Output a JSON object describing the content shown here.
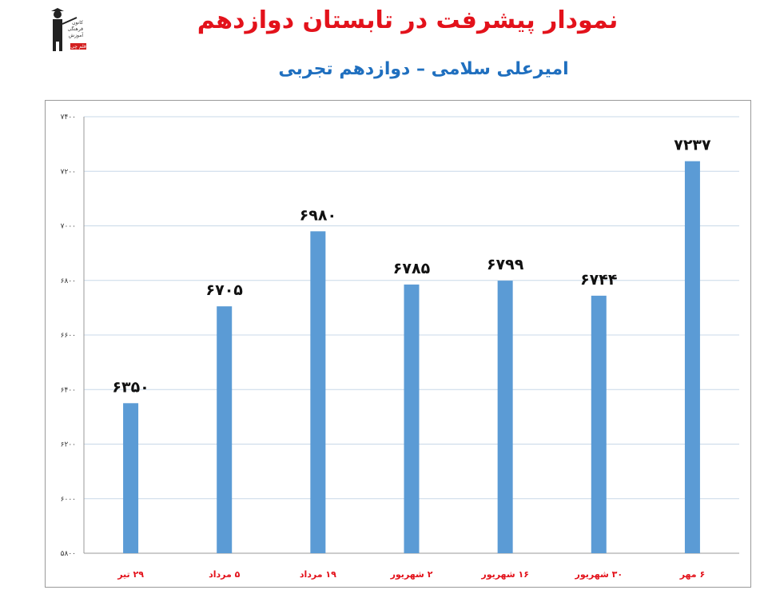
{
  "header": {
    "title": "نمودار پیشرفت در تابستان دوازدهم",
    "subtitle": "امیرعلی سلامی – دوازدهم تجربی"
  },
  "logo": {
    "icon": "graduate-teacher-logo",
    "text": [
      "کانون",
      "فرهنگی",
      "آموزش",
      "قلم چی"
    ]
  },
  "colors": {
    "title": "#e3121b",
    "subtitle": "#1f6fbf",
    "bar": "#5b9bd5",
    "grid": "#c8d8e8",
    "category_label": "#e3121b"
  },
  "chart_data": {
    "type": "bar",
    "categories": [
      "۲۹ تیر",
      "۵ مرداد",
      "۱۹ مرداد",
      "۲ شهریور",
      "۱۶ شهریور",
      "۳۰ شهریور",
      "۶ مهر"
    ],
    "values": [
      6350,
      6705,
      6980,
      6785,
      6799,
      6744,
      7237
    ],
    "value_labels": [
      "۶۳۵۰",
      "۶۷۰۵",
      "۶۹۸۰",
      "۶۷۸۵",
      "۶۷۹۹",
      "۶۷۴۴",
      "۷۲۳۷"
    ],
    "ylim": [
      5800,
      7400
    ],
    "yticks": [
      5800,
      6000,
      6200,
      6400,
      6600,
      6800,
      7000,
      7200,
      7400
    ],
    "ytick_labels": [
      "۵۸۰۰",
      "۶۰۰۰",
      "۶۲۰۰",
      "۶۴۰۰",
      "۶۶۰۰",
      "۶۸۰۰",
      "۷۰۰۰",
      "۷۲۰۰",
      "۷۴۰۰"
    ],
    "grid": true,
    "legend": "none"
  }
}
